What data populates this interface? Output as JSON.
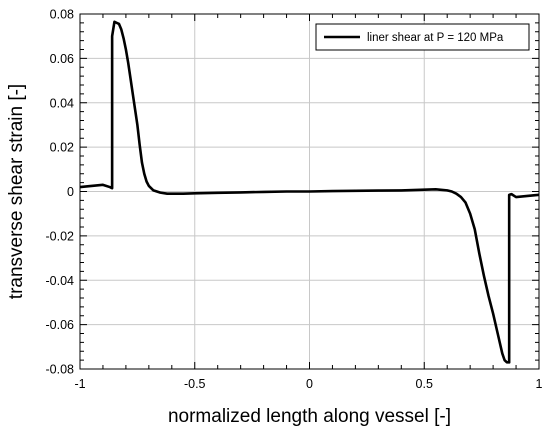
{
  "chart_data": {
    "type": "line",
    "title": "",
    "xlabel": "normalized length along vessel [-]",
    "ylabel": "transverse shear strain [-]",
    "xlim": [
      -1,
      1
    ],
    "ylim": [
      -0.08,
      0.08
    ],
    "x_ticks": [
      -1,
      -0.5,
      0,
      0.5,
      1
    ],
    "x_tick_labels": [
      "-1",
      "-0.5",
      "0",
      "0.5",
      "1"
    ],
    "y_ticks": [
      -0.08,
      -0.06,
      -0.04,
      -0.02,
      0,
      0.02,
      0.04,
      0.06,
      0.08
    ],
    "y_tick_labels": [
      "-0.08",
      "-0.06",
      "-0.04",
      "-0.02",
      "0",
      "0.02",
      "0.04",
      "0.06",
      "0.08"
    ],
    "grid": true,
    "legend_position": "top-right",
    "colors": {
      "line": "#000000",
      "grid": "#c8c8c8",
      "frame": "#000000"
    },
    "series": [
      {
        "name": "liner shear at P = 120 MPa",
        "x": [
          -1.0,
          -0.95,
          -0.9,
          -0.87,
          -0.86,
          -0.86,
          -0.85,
          -0.84,
          -0.83,
          -0.82,
          -0.81,
          -0.8,
          -0.79,
          -0.78,
          -0.77,
          -0.76,
          -0.75,
          -0.74,
          -0.73,
          -0.72,
          -0.71,
          -0.7,
          -0.68,
          -0.65,
          -0.62,
          -0.6,
          -0.55,
          -0.5,
          -0.4,
          -0.3,
          -0.2,
          -0.1,
          0.0,
          0.1,
          0.2,
          0.3,
          0.4,
          0.5,
          0.55,
          0.6,
          0.62,
          0.64,
          0.66,
          0.68,
          0.7,
          0.72,
          0.74,
          0.76,
          0.78,
          0.8,
          0.82,
          0.84,
          0.85,
          0.86,
          0.87,
          0.87,
          0.88,
          0.9,
          0.95,
          1.0
        ],
        "y": [
          0.002,
          0.0025,
          0.003,
          0.002,
          0.0015,
          0.07,
          0.0765,
          0.076,
          0.0755,
          0.073,
          0.069,
          0.064,
          0.058,
          0.051,
          0.044,
          0.037,
          0.03,
          0.021,
          0.013,
          0.008,
          0.0045,
          0.0025,
          0.0005,
          -0.0005,
          -0.001,
          -0.001,
          -0.001,
          -0.0008,
          -0.0006,
          -0.0004,
          -0.0002,
          0.0,
          0.0,
          0.0002,
          0.0003,
          0.0004,
          0.0005,
          0.0008,
          0.001,
          0.0005,
          0.0,
          -0.001,
          -0.0025,
          -0.005,
          -0.01,
          -0.017,
          -0.028,
          -0.038,
          -0.047,
          -0.055,
          -0.064,
          -0.073,
          -0.076,
          -0.077,
          -0.077,
          -0.0015,
          -0.0012,
          -0.0025,
          -0.002,
          -0.0015
        ]
      }
    ]
  }
}
